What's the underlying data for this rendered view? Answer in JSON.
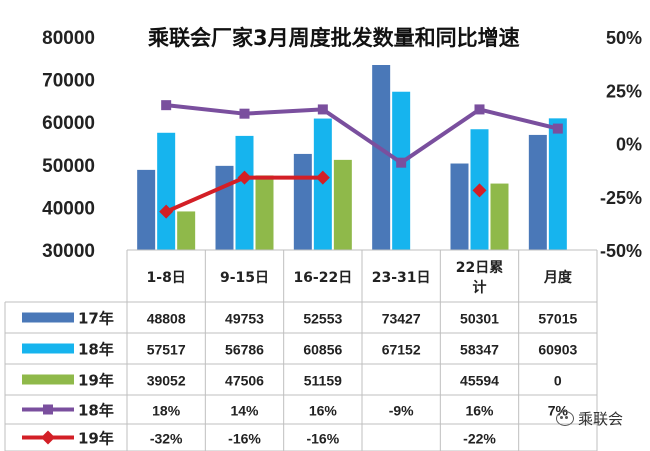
{
  "title": "乘联会厂家3月周度批发数量和同比增速",
  "watermark": "乘联会",
  "colors": {
    "s17": "#4a78b8",
    "s18": "#16b4ee",
    "s19": "#8fb94a",
    "g18": "#7a4f9e",
    "g19": "#d31f26",
    "grid": "#bfbfbf"
  },
  "chart_data": {
    "type": "bar",
    "title": "乘联会厂家3月周度批发数量和同比增速",
    "categories": [
      "1-8日",
      "9-15日",
      "16-22日",
      "23-31日",
      "22日累计",
      "月度"
    ],
    "category_lines": [
      [
        "1-8日"
      ],
      [
        "9-15日"
      ],
      [
        "16-22日"
      ],
      [
        "23-31日"
      ],
      [
        "22日累",
        "计"
      ],
      [
        "月度"
      ]
    ],
    "ylim": [
      30000,
      80000
    ],
    "yticks": [
      "80000",
      "70000",
      "60000",
      "50000",
      "40000",
      "30000"
    ],
    "y2lim": [
      -0.5,
      0.5
    ],
    "y2ticks": [
      "50%",
      "25%",
      "0%",
      "-25%",
      "-50%"
    ],
    "series": [
      {
        "name": "17年",
        "kind": "bar",
        "color_key": "s17",
        "values": [
          48808,
          49753,
          52553,
          73427,
          50301,
          57015
        ],
        "labels": [
          "48808",
          "49753",
          "52553",
          "73427",
          "50301",
          "57015"
        ]
      },
      {
        "name": "18年",
        "kind": "bar",
        "color_key": "s18",
        "values": [
          57517,
          56786,
          60856,
          67152,
          58347,
          60903
        ],
        "labels": [
          "57517",
          "56786",
          "60856",
          "67152",
          "58347",
          "60903"
        ]
      },
      {
        "name": "19年",
        "kind": "bar",
        "color_key": "s19",
        "values": [
          39052,
          47506,
          51159,
          null,
          45594,
          0
        ],
        "labels": [
          "39052",
          "47506",
          "51159",
          "",
          "45594",
          "0"
        ]
      },
      {
        "name": "18年",
        "kind": "line",
        "color_key": "g18",
        "marker": "square",
        "values": [
          0.18,
          0.14,
          0.16,
          -0.09,
          0.16,
          0.07
        ],
        "labels": [
          "18%",
          "14%",
          "16%",
          "-9%",
          "16%",
          "7%"
        ]
      },
      {
        "name": "19年",
        "kind": "line",
        "color_key": "g19",
        "marker": "diamond",
        "values": [
          -0.32,
          -0.16,
          -0.16,
          null,
          -0.22,
          null
        ],
        "labels": [
          "-32%",
          "-16%",
          "-16%",
          "",
          "-22%",
          ""
        ]
      }
    ]
  }
}
